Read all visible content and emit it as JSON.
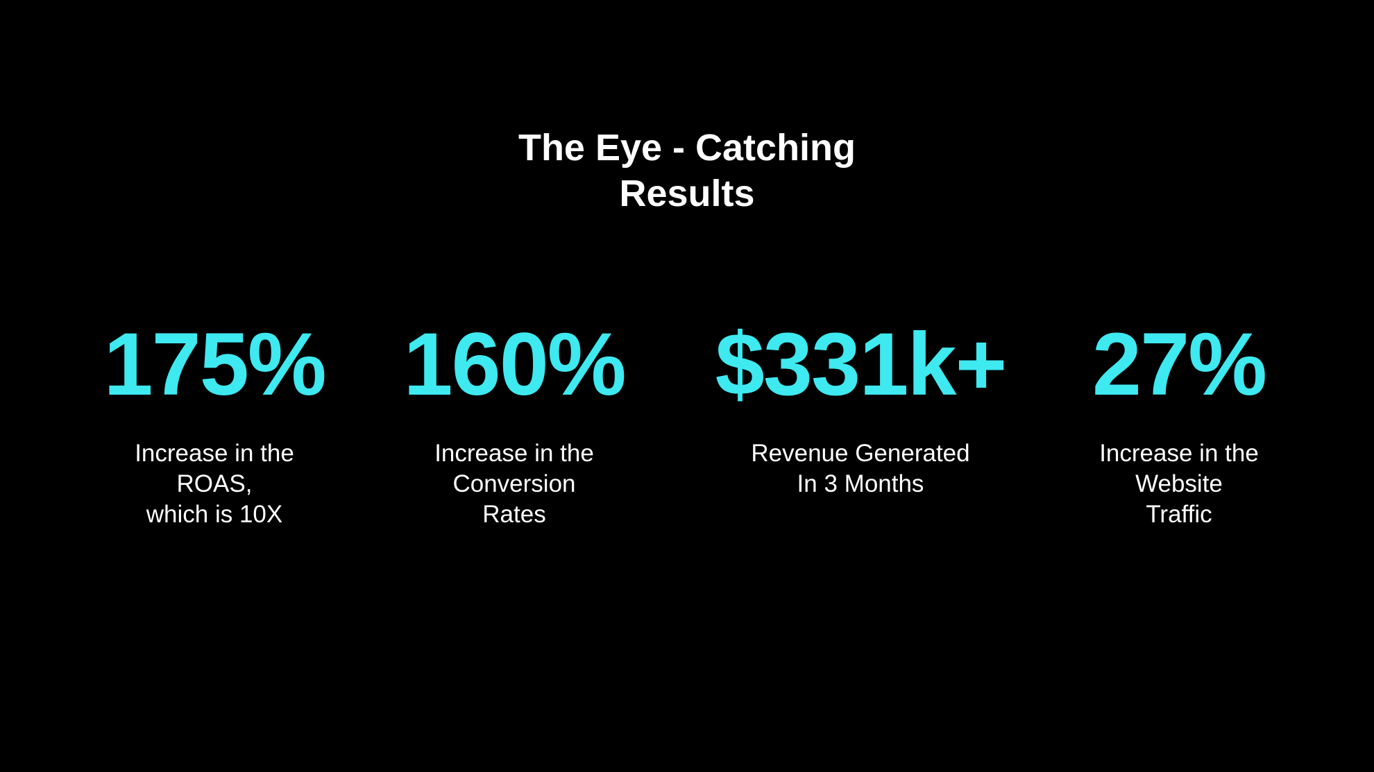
{
  "title_lines": [
    "The Eye - Catching",
    "Results"
  ],
  "stats": [
    {
      "value": "175%",
      "description_lines": [
        "Increase in the",
        "ROAS,",
        "which is 10X"
      ]
    },
    {
      "value": "160%",
      "description_lines": [
        "Increase in the",
        "Conversion",
        "Rates"
      ]
    },
    {
      "value": "$331k+",
      "description_lines": [
        "Revenue Generated",
        "In 3 Months"
      ]
    },
    {
      "value": "27%",
      "description_lines": [
        "Increase in the",
        "Website",
        "Traffic"
      ]
    }
  ]
}
